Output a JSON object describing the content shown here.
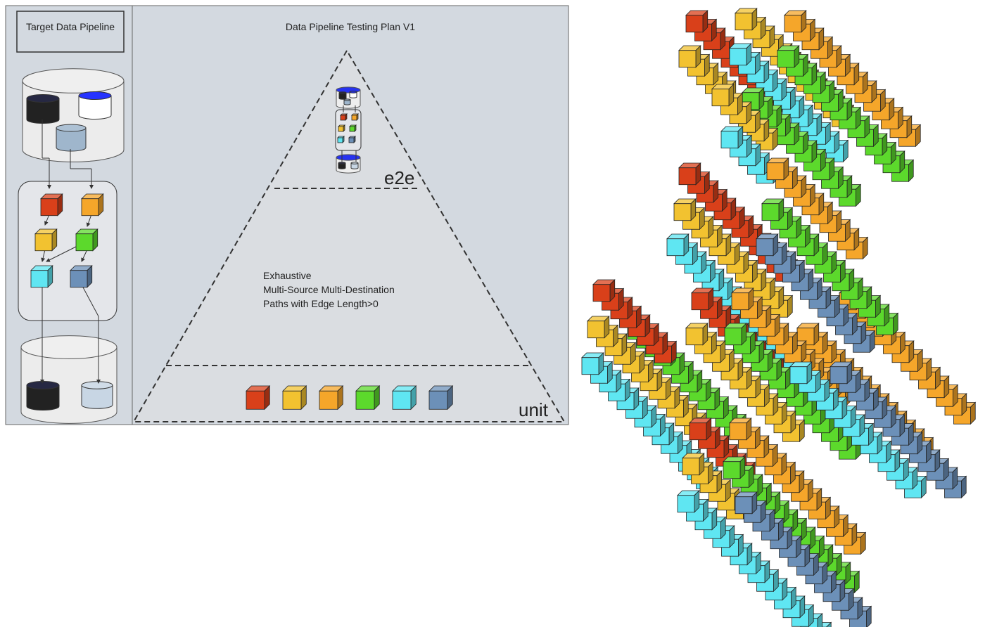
{
  "left_panel": {
    "title": "Target Data Pipeline"
  },
  "main_panel": {
    "title": "Data Pipeline Testing Plan V1"
  },
  "pyramid": {
    "top_label": "e2e",
    "description": [
      "Exhaustive",
      "Multi-Source Multi-Destination",
      "Paths with Edge Length>0"
    ],
    "bottom_label": "unit"
  }
}
